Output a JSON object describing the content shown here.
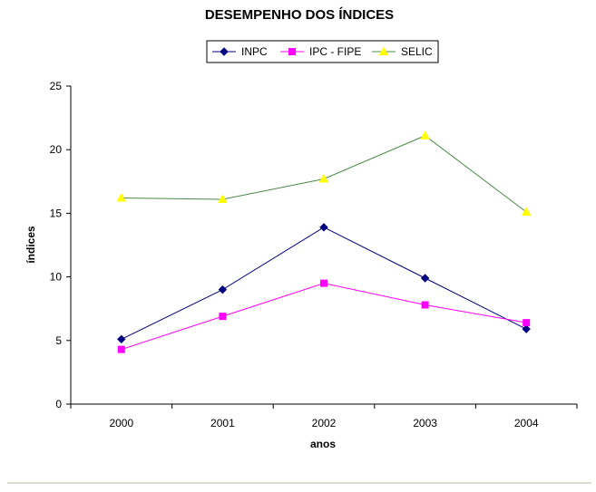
{
  "chart_data": {
    "type": "line",
    "title": "DESEMPENHO DOS ÍNDICES",
    "xlabel": "anos",
    "ylabel": "índices",
    "categories": [
      "2000",
      "2001",
      "2002",
      "2003",
      "2004"
    ],
    "ylim": [
      0,
      25
    ],
    "yticks": [
      0,
      5,
      10,
      15,
      20,
      25
    ],
    "grid": false,
    "legend_position": "top-center",
    "series": [
      {
        "name": "INPC",
        "values": [
          5.1,
          9.0,
          13.9,
          9.9,
          5.9
        ],
        "color": "#000080",
        "marker": "diamond"
      },
      {
        "name": "IPC - FIPE",
        "values": [
          4.3,
          6.9,
          9.5,
          7.8,
          6.4
        ],
        "color": "#ff00ff",
        "marker": "square"
      },
      {
        "name": "SELIC",
        "values": [
          16.2,
          16.1,
          17.7,
          21.1,
          15.1
        ],
        "color": "#ffff00",
        "line_color": "#4a8a4a",
        "marker": "triangle"
      }
    ]
  }
}
